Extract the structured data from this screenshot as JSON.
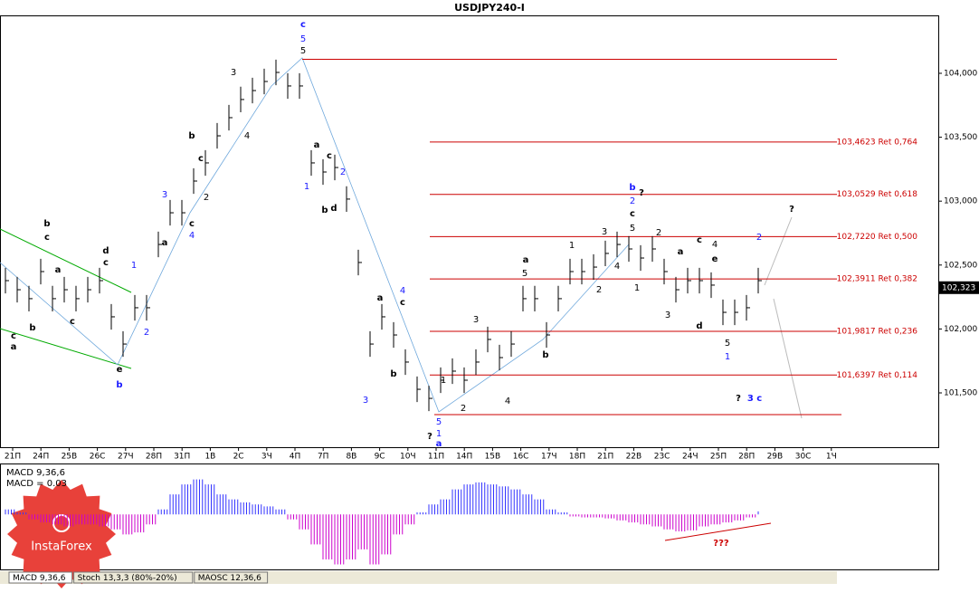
{
  "chart_data": {
    "type": "ohlc",
    "title": "USDJPY240-I",
    "color": "#000000",
    "high": [
      102.478,
      102.407,
      102.337,
      102.549,
      102.337,
      102.407,
      102.337,
      102.407,
      102.478,
      102.195,
      101.982,
      102.266,
      102.266,
      102.761,
      103.009,
      103.009,
      103.257,
      103.399,
      103.611,
      103.753,
      103.895,
      103.965,
      104.036,
      104.107,
      104.001,
      104.001,
      103.399,
      103.328,
      103.363,
      103.116,
      102.62,
      101.982,
      102.195,
      102.053,
      101.841,
      101.628,
      101.557,
      101.699,
      101.77,
      101.699,
      101.841,
      102.018,
      101.876,
      101.982,
      102.337,
      102.337,
      102.053,
      102.337,
      102.549,
      102.549,
      102.584,
      102.691,
      102.761,
      102.726,
      102.655,
      102.726,
      102.549,
      102.407,
      102.478,
      102.478,
      102.443,
      102.23,
      102.23,
      102.266,
      102.478
    ],
    "low": [
      102.278,
      102.207,
      102.137,
      102.349,
      102.137,
      102.207,
      102.137,
      102.207,
      102.278,
      101.995,
      101.782,
      102.066,
      102.066,
      102.561,
      102.809,
      102.809,
      103.057,
      103.199,
      103.411,
      103.553,
      103.695,
      103.765,
      103.836,
      103.907,
      103.801,
      103.801,
      103.199,
      103.128,
      103.163,
      102.916,
      102.42,
      101.782,
      101.995,
      101.853,
      101.641,
      101.428,
      101.357,
      101.499,
      101.57,
      101.499,
      101.641,
      101.818,
      101.676,
      101.782,
      102.137,
      102.137,
      101.853,
      102.137,
      102.349,
      102.349,
      102.384,
      102.491,
      102.561,
      102.526,
      102.455,
      102.526,
      102.349,
      102.207,
      102.278,
      102.278,
      102.243,
      102.03,
      102.03,
      102.066,
      102.278
    ],
    "close": [
      102.378,
      102.307,
      102.237,
      102.449,
      102.237,
      102.307,
      102.237,
      102.307,
      102.378,
      102.095,
      101.882,
      102.166,
      102.166,
      102.661,
      102.909,
      102.909,
      103.157,
      103.299,
      103.511,
      103.653,
      103.795,
      103.865,
      103.936,
      104.007,
      103.901,
      103.901,
      103.299,
      103.228,
      103.263,
      103.016,
      102.52,
      101.882,
      102.095,
      101.953,
      101.741,
      101.528,
      101.457,
      101.599,
      101.67,
      101.599,
      101.741,
      101.918,
      101.776,
      101.882,
      102.237,
      102.237,
      101.953,
      102.237,
      102.449,
      102.449,
      102.484,
      102.591,
      102.661,
      102.626,
      102.555,
      102.626,
      102.449,
      102.307,
      102.378,
      102.378,
      102.343,
      102.13,
      102.13,
      102.166,
      102.378
    ],
    "ylim": [
      101.075,
      104.446
    ],
    "yticks": [
      {
        "value": 101.5,
        "label": "101,500"
      },
      {
        "value": 102,
        "label": "102,000"
      },
      {
        "value": 102.5,
        "label": "102,500"
      },
      {
        "value": 103,
        "label": "103,000"
      },
      {
        "value": 103.5,
        "label": "103,500"
      },
      {
        "value": 104,
        "label": "104,000"
      }
    ],
    "price_label": {
      "value": 102.323,
      "label": "102,323"
    },
    "categories": [
      "21П",
      "24П",
      "25В",
      "26С",
      "27Ч",
      "28П",
      "31П",
      "1В",
      "2С",
      "3Ч",
      "4П",
      "7П",
      "8В",
      "9С",
      "10Ч",
      "11П",
      "14П",
      "15В",
      "16С",
      "17Ч",
      "18П",
      "21П",
      "22В",
      "23С",
      "24Ч",
      "25П",
      "28П",
      "29В",
      "30С",
      "1Ч"
    ],
    "levels": [
      {
        "value": 103.4623,
        "label": "103,4623 Ret 0,764"
      },
      {
        "value": 103.0529,
        "label": "103,0529 Ret 0,618"
      },
      {
        "value": 102.722,
        "label": "102,7220 Ret 0,500"
      },
      {
        "value": 102.3911,
        "label": "102,3911 Ret 0,382"
      },
      {
        "value": 101.9817,
        "label": "101,9817 Ret 0,236"
      },
      {
        "value": 101.6397,
        "label": "101,6397 Ret 0,114"
      }
    ],
    "range_lines": [
      104.11,
      101.33
    ],
    "level_color": "#cc0000",
    "annotations": [
      "c",
      "5",
      "5",
      "3",
      "4",
      "b",
      "c",
      "2",
      "a",
      "3",
      "4",
      "c",
      "b",
      "c",
      "a",
      "a",
      "c",
      "b",
      "c",
      "d",
      "c",
      "1",
      "2",
      "e",
      "b",
      "a",
      "c",
      "2",
      "1",
      "b",
      "d",
      "a",
      "4",
      "c",
      "b",
      "3",
      "?",
      "5",
      "1",
      "a",
      "1",
      "2",
      "3",
      "4",
      "a",
      "5",
      "b",
      "1",
      "2",
      "3",
      "4",
      "1",
      "5",
      "c",
      "2",
      "b",
      "?",
      "2",
      "a",
      "c",
      "4",
      "e",
      "3",
      "d",
      "5",
      "1",
      "2",
      "?",
      "?",
      "3 c",
      "???"
    ],
    "indicator": {
      "name": "MACD 9,36,6",
      "readout": "MACD = 0.03",
      "ylim": [
        -0.55,
        0.5
      ],
      "positive_color": "#3333ff",
      "negative_color": "#cc00cc",
      "values": [
        0.05,
        0.02,
        -0.05,
        -0.08,
        -0.1,
        -0.12,
        -0.1,
        -0.1,
        -0.12,
        -0.15,
        -0.2,
        -0.18,
        -0.1,
        0.05,
        0.2,
        0.3,
        0.35,
        0.3,
        0.2,
        0.15,
        0.12,
        0.1,
        0.08,
        0.05,
        -0.05,
        -0.15,
        -0.3,
        -0.45,
        -0.5,
        -0.45,
        -0.35,
        -0.5,
        -0.4,
        -0.2,
        -0.1,
        0.02,
        0.1,
        0.15,
        0.25,
        0.3,
        0.32,
        0.3,
        0.28,
        0.25,
        0.2,
        0.15,
        0.05,
        0.02,
        -0.02,
        -0.03,
        -0.03,
        -0.04,
        -0.06,
        -0.08,
        -0.1,
        -0.12,
        -0.15,
        -0.17,
        -0.16,
        -0.12,
        -0.1,
        -0.08,
        -0.06,
        -0.03,
        0.03
      ]
    },
    "tabs": [
      "MACD 9,36,6",
      "Stoch 13,3,3 (80%-20%)",
      "MAOSC 12,36,6"
    ],
    "logo": "InstaForex"
  }
}
